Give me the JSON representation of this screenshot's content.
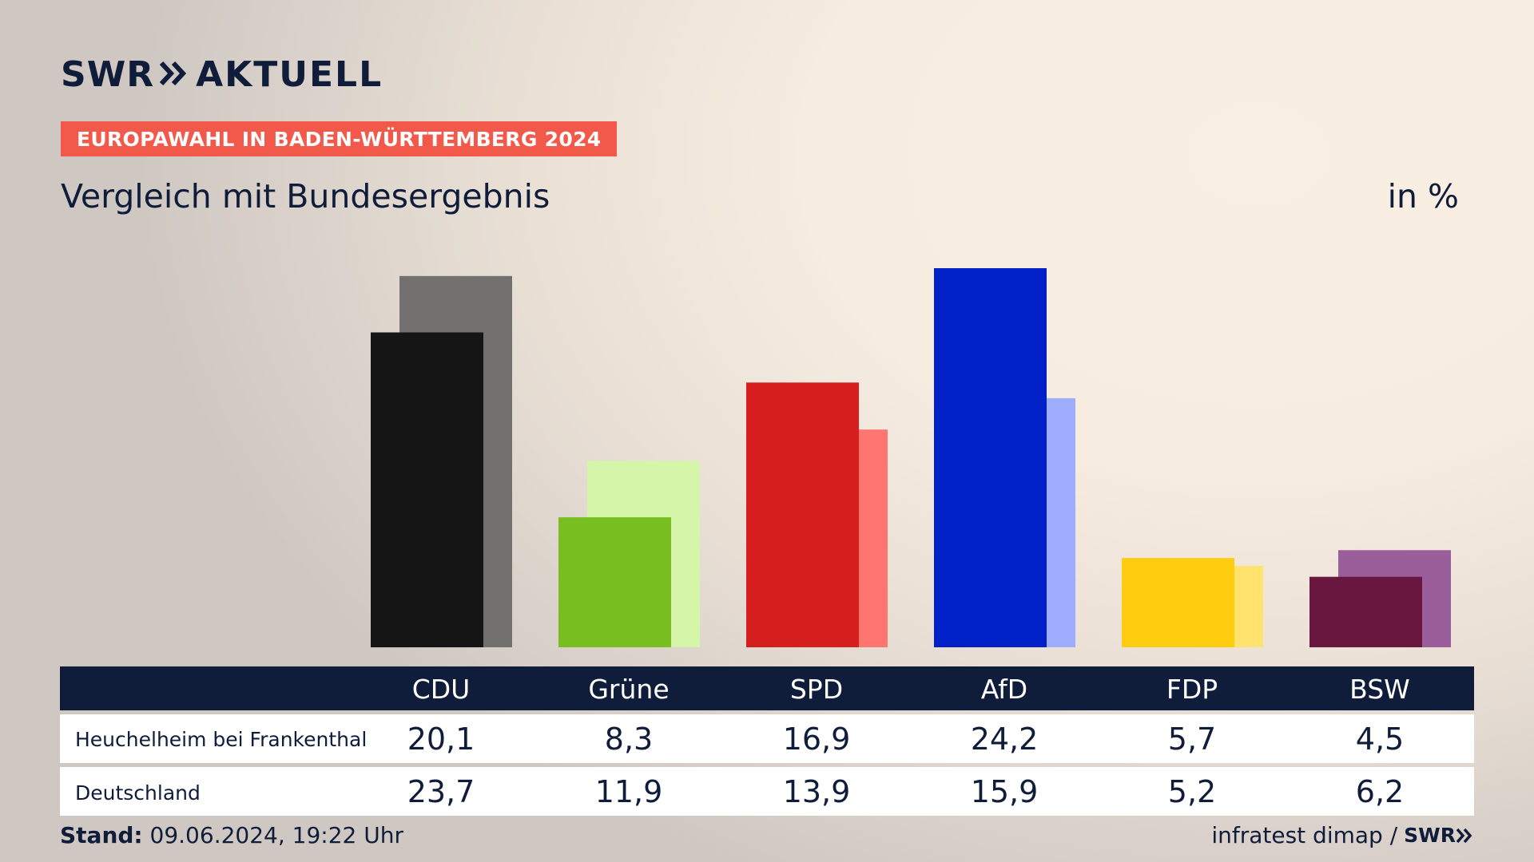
{
  "header": {
    "logo_left": "SWR",
    "logo_right": "AKTUELL",
    "badge": "EUROPAWAHL IN BADEN-WÜRTTEMBERG 2024",
    "subtitle": "Vergleich mit Bundesergebnis",
    "unit": "in %"
  },
  "table": {
    "row_labels": [
      "Heuchelheim bei Frankenthal",
      "Deutschland"
    ]
  },
  "footer": {
    "stand_label": "Stand:",
    "stand_value": "09.06.2024, 19:22 Uhr",
    "source": "infratest dimap /",
    "source_logo": "SWR"
  },
  "colors": {
    "navy": "#0f1c3a",
    "badge": "#f2594a"
  },
  "chart_data": {
    "type": "bar",
    "categories": [
      "CDU",
      "Grüne",
      "SPD",
      "AfD",
      "FDP",
      "BSW"
    ],
    "series": [
      {
        "name": "Heuchelheim bei Frankenthal",
        "values": [
          20.1,
          8.3,
          16.9,
          24.2,
          5.7,
          4.5
        ],
        "labels": [
          "20,1",
          "8,3",
          "16,9",
          "24,2",
          "5,7",
          "4,5"
        ],
        "colors": [
          "#151515",
          "#78be20",
          "#d71f20",
          "#0021c8",
          "#ffcd0f",
          "#6a173f"
        ]
      },
      {
        "name": "Deutschland",
        "values": [
          23.7,
          11.9,
          13.9,
          15.9,
          5.2,
          6.2
        ],
        "labels": [
          "23,7",
          "11,9",
          "13,9",
          "15,9",
          "5,2",
          "6,2"
        ],
        "colors": [
          "#73716f",
          "#d5f5a8",
          "#ff7670",
          "#9fadff",
          "#ffe36e",
          "#9a5e9a"
        ]
      }
    ],
    "ylim": [
      0,
      24.2
    ]
  }
}
